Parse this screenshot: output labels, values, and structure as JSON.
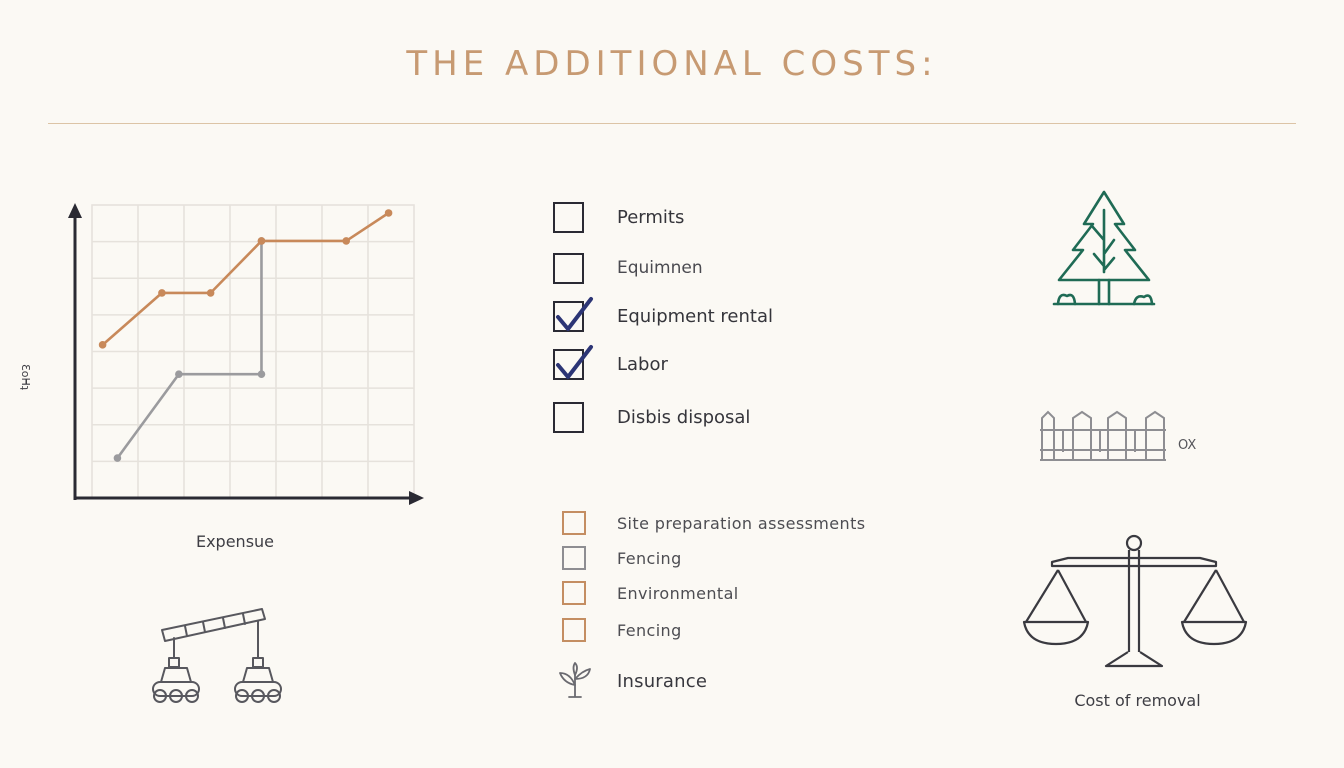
{
  "title": "THE ADDITIONAL COSTS:",
  "chart_data": {
    "type": "line",
    "xlabel": "Expensue",
    "ylabel": "Ɛoᕼʇ",
    "series": [
      {
        "color": "#c8895a",
        "points": [
          [
            0.25,
            5.75
          ],
          [
            1.65,
            7.7
          ],
          [
            2.8,
            7.7
          ],
          [
            4,
            9.65
          ],
          [
            6,
            9.65
          ],
          [
            7,
            10.7
          ]
        ]
      },
      {
        "color": "#9b9b9e",
        "points": [
          [
            0.6,
            1.5
          ],
          [
            2.05,
            4.65
          ],
          [
            4,
            4.65
          ],
          [
            4,
            9.65
          ]
        ]
      }
    ],
    "xlim": [
      0,
      7.6
    ],
    "ylim": [
      0,
      11
    ],
    "grid": true
  },
  "checklist": {
    "items": [
      {
        "label": "Permits",
        "checked": false
      },
      {
        "label": "Equimnen",
        "checked": false
      },
      {
        "label": "Equipment rental",
        "checked": true
      },
      {
        "label": "Labor",
        "checked": true
      },
      {
        "label": "Disbis disposal",
        "checked": false
      }
    ],
    "check_color": "#2c3575"
  },
  "secondary_list": {
    "items": [
      {
        "label": "Site preparation assessments",
        "style": "copper"
      },
      {
        "label": "Fencing",
        "style": "gray"
      },
      {
        "label": "Environmental",
        "style": "copper"
      },
      {
        "label": "Fencing",
        "style": "copper"
      },
      {
        "label": "Insurance",
        "style": "plant-icon"
      }
    ]
  },
  "icons": {
    "tree": "tree-icon",
    "fence": "fence-icon",
    "scale": "scale-icon",
    "machinery": "machinery-icon"
  },
  "fence_label": "OX",
  "scale_label": "Cost of removal",
  "colors": {
    "accent_copper": "#c48e62",
    "tree_green": "#1f6b55",
    "ink": "#2a2a33"
  }
}
